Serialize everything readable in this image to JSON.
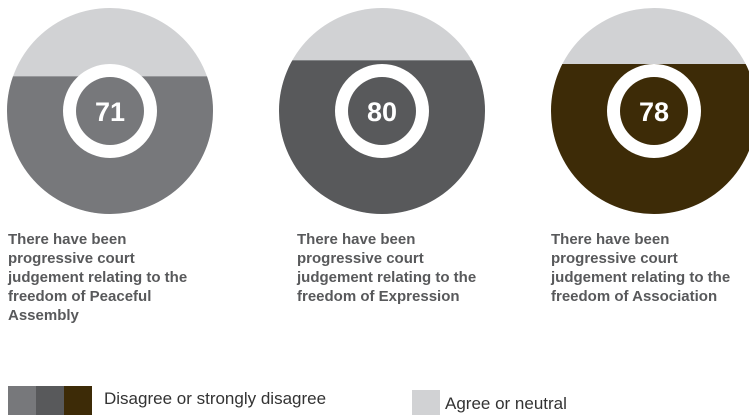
{
  "chart_data": {
    "type": "fill-gauge",
    "categories": [
      "There have been progressive court judgement relating to the freedom of Peaceful Assembly",
      "There have been progressive court judgement relating to the freedom of Expression",
      "There have been progressive court judgement relating to the freedom of Association"
    ],
    "series": [
      {
        "name": "Disagree or strongly disagree",
        "colors": [
          "#77787b",
          "#58595b",
          "#3d2b07"
        ],
        "values": [
          71,
          80,
          78
        ]
      },
      {
        "name": "Agree or neutral",
        "color": "#d1d2d4"
      }
    ]
  }
}
